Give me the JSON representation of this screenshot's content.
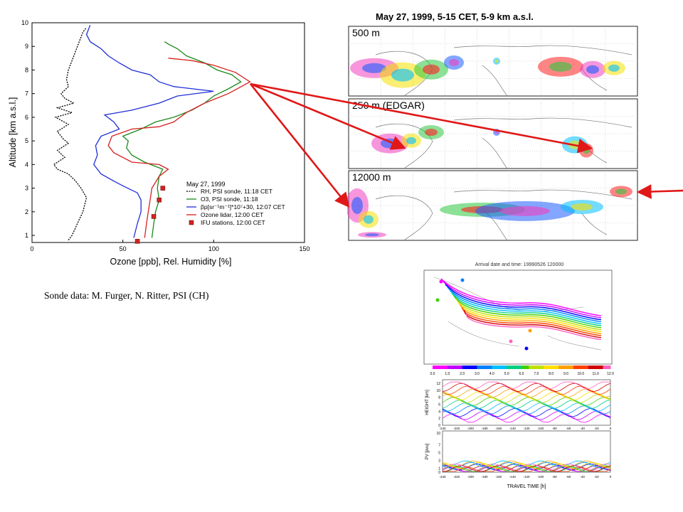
{
  "chart_data": [
    {
      "type": "line",
      "xlabel": "Ozone [ppb], Rel. Humidity [%]",
      "ylabel": "Altitude [km a.s.l.]",
      "xlim": [
        0,
        150
      ],
      "ylim": [
        0.7,
        10
      ],
      "xticks": [
        0,
        50,
        100,
        150
      ],
      "yticks": [
        1,
        2,
        3,
        4,
        5,
        6,
        7,
        8,
        9,
        10
      ],
      "legend_title": "May 27, 1999",
      "legend_position": "lower-right",
      "series": [
        {
          "name": "RH, PSI sonde, 11:18 CET",
          "style": "dotted",
          "color": "#000000",
          "points": [
            [
              20,
              0.8
            ],
            [
              22,
              1.0
            ],
            [
              25,
              1.5
            ],
            [
              28,
              2.0
            ],
            [
              30,
              2.6
            ],
            [
              27,
              3.0
            ],
            [
              24,
              3.3
            ],
            [
              20,
              3.6
            ],
            [
              14,
              3.8
            ],
            [
              12,
              4.0
            ],
            [
              18,
              4.3
            ],
            [
              14,
              4.6
            ],
            [
              20,
              4.9
            ],
            [
              17,
              5.1
            ],
            [
              14,
              5.4
            ],
            [
              20,
              5.7
            ],
            [
              13,
              6.0
            ],
            [
              22,
              6.2
            ],
            [
              14,
              6.4
            ],
            [
              23,
              6.6
            ],
            [
              18,
              6.8
            ],
            [
              16,
              7.0
            ],
            [
              20,
              7.3
            ],
            [
              19,
              7.6
            ],
            [
              20,
              8.0
            ],
            [
              22,
              8.4
            ],
            [
              24,
              8.8
            ],
            [
              26,
              9.2
            ],
            [
              28,
              9.6
            ],
            [
              30,
              9.8
            ]
          ]
        },
        {
          "name": "O3, PSI sonde, 11:18",
          "style": "solid",
          "color": "#1a8a1a",
          "points": [
            [
              66,
              0.9
            ],
            [
              67,
              1.5
            ],
            [
              68,
              2.0
            ],
            [
              70,
              2.5
            ],
            [
              69,
              3.0
            ],
            [
              70,
              3.5
            ],
            [
              72,
              3.8
            ],
            [
              62,
              4.1
            ],
            [
              55,
              4.4
            ],
            [
              52,
              4.7
            ],
            [
              53,
              5.0
            ],
            [
              50,
              5.2
            ],
            [
              60,
              5.5
            ],
            [
              68,
              5.8
            ],
            [
              78,
              6.0
            ],
            [
              88,
              6.3
            ],
            [
              95,
              6.6
            ],
            [
              100,
              6.9
            ],
            [
              108,
              7.2
            ],
            [
              115,
              7.5
            ],
            [
              110,
              7.8
            ],
            [
              102,
              8.0
            ],
            [
              95,
              8.3
            ],
            [
              85,
              8.6
            ],
            [
              80,
              8.9
            ],
            [
              75,
              9.1
            ],
            [
              73,
              9.2
            ]
          ]
        },
        {
          "name": "βp[sr⁻¹m⁻¹]*10⁷+30, 12:07 CET",
          "style": "solid",
          "color": "#1f2fd6",
          "points": [
            [
              56,
              0.9
            ],
            [
              58,
              1.5
            ],
            [
              60,
              2.0
            ],
            [
              60,
              2.5
            ],
            [
              58,
              2.8
            ],
            [
              50,
              3.1
            ],
            [
              45,
              3.3
            ],
            [
              38,
              3.6
            ],
            [
              34,
              4.0
            ],
            [
              36,
              4.4
            ],
            [
              35,
              4.8
            ],
            [
              38,
              5.2
            ],
            [
              48,
              5.5
            ],
            [
              45,
              5.8
            ],
            [
              40,
              6.1
            ],
            [
              55,
              6.3
            ],
            [
              70,
              6.6
            ],
            [
              80,
              6.9
            ],
            [
              100,
              7.1
            ],
            [
              78,
              7.3
            ],
            [
              70,
              7.5
            ],
            [
              65,
              7.8
            ],
            [
              55,
              8.0
            ],
            [
              48,
              8.3
            ],
            [
              42,
              8.6
            ],
            [
              38,
              8.9
            ],
            [
              32,
              9.2
            ],
            [
              30,
              9.5
            ],
            [
              32,
              9.9
            ]
          ]
        },
        {
          "name": "Ozone lidar, 12:00 CET",
          "style": "solid",
          "color": "#d42020",
          "points": [
            [
              62,
              0.9
            ],
            [
              63,
              1.5
            ],
            [
              64,
              2.0
            ],
            [
              65,
              2.5
            ],
            [
              66,
              3.0
            ],
            [
              70,
              3.5
            ],
            [
              75,
              3.8
            ],
            [
              70,
              4.0
            ],
            [
              55,
              4.1
            ],
            [
              45,
              4.5
            ],
            [
              42,
              4.8
            ],
            [
              44,
              5.2
            ],
            [
              55,
              5.5
            ],
            [
              70,
              5.6
            ],
            [
              78,
              5.8
            ],
            [
              85,
              6.2
            ],
            [
              95,
              6.6
            ],
            [
              108,
              7.0
            ],
            [
              120,
              7.5
            ],
            [
              112,
              7.9
            ],
            [
              100,
              8.2
            ],
            [
              88,
              8.4
            ],
            [
              75,
              8.5
            ]
          ]
        },
        {
          "name": "IFU stations, 12:00 CET",
          "style": "marker",
          "color": "#d42020",
          "points": [
            [
              58,
              0.75
            ],
            [
              67,
              1.8
            ],
            [
              70,
              2.5
            ],
            [
              72,
              3.0
            ]
          ]
        }
      ]
    },
    {
      "type": "heatmap",
      "title": "May 27, 1999, 5-15 CET, 5-9 km a.s.l.",
      "panels": [
        "500 m",
        "250 m (EDGAR)",
        "12000 m"
      ]
    },
    {
      "type": "line",
      "title": "Arrival date and time: 19990526 120000",
      "colorbar_ticks": [
        "0.0",
        "1.0",
        "2.0",
        "3.0",
        "4.0",
        "5.0",
        "6.0",
        "7.0",
        "8.0",
        "9.0",
        "10.0",
        "11.0",
        "12.0"
      ],
      "height_panel": {
        "ylabel": "HEIGHT [km]",
        "yticks": [
          0,
          2,
          4,
          6,
          8,
          10,
          12
        ]
      },
      "pv_panel": {
        "ylabel": "PV [pvu]",
        "yticks": [
          0,
          1,
          3,
          5,
          7,
          10
        ]
      },
      "xlabel": "TRAVEL TIME [h]",
      "xticks": [
        -240,
        -220,
        -200,
        -180,
        -160,
        -140,
        -120,
        -100,
        -80,
        -60,
        -40,
        -20,
        0
      ]
    }
  ],
  "credit": "Sonde data: M. Furger, N. Ritter, PSI (CH)",
  "colors": {
    "arrow": "#e01818",
    "ozone": "#1a8a1a",
    "lidar": "#d42020",
    "backscatter": "#1f2fd6"
  }
}
